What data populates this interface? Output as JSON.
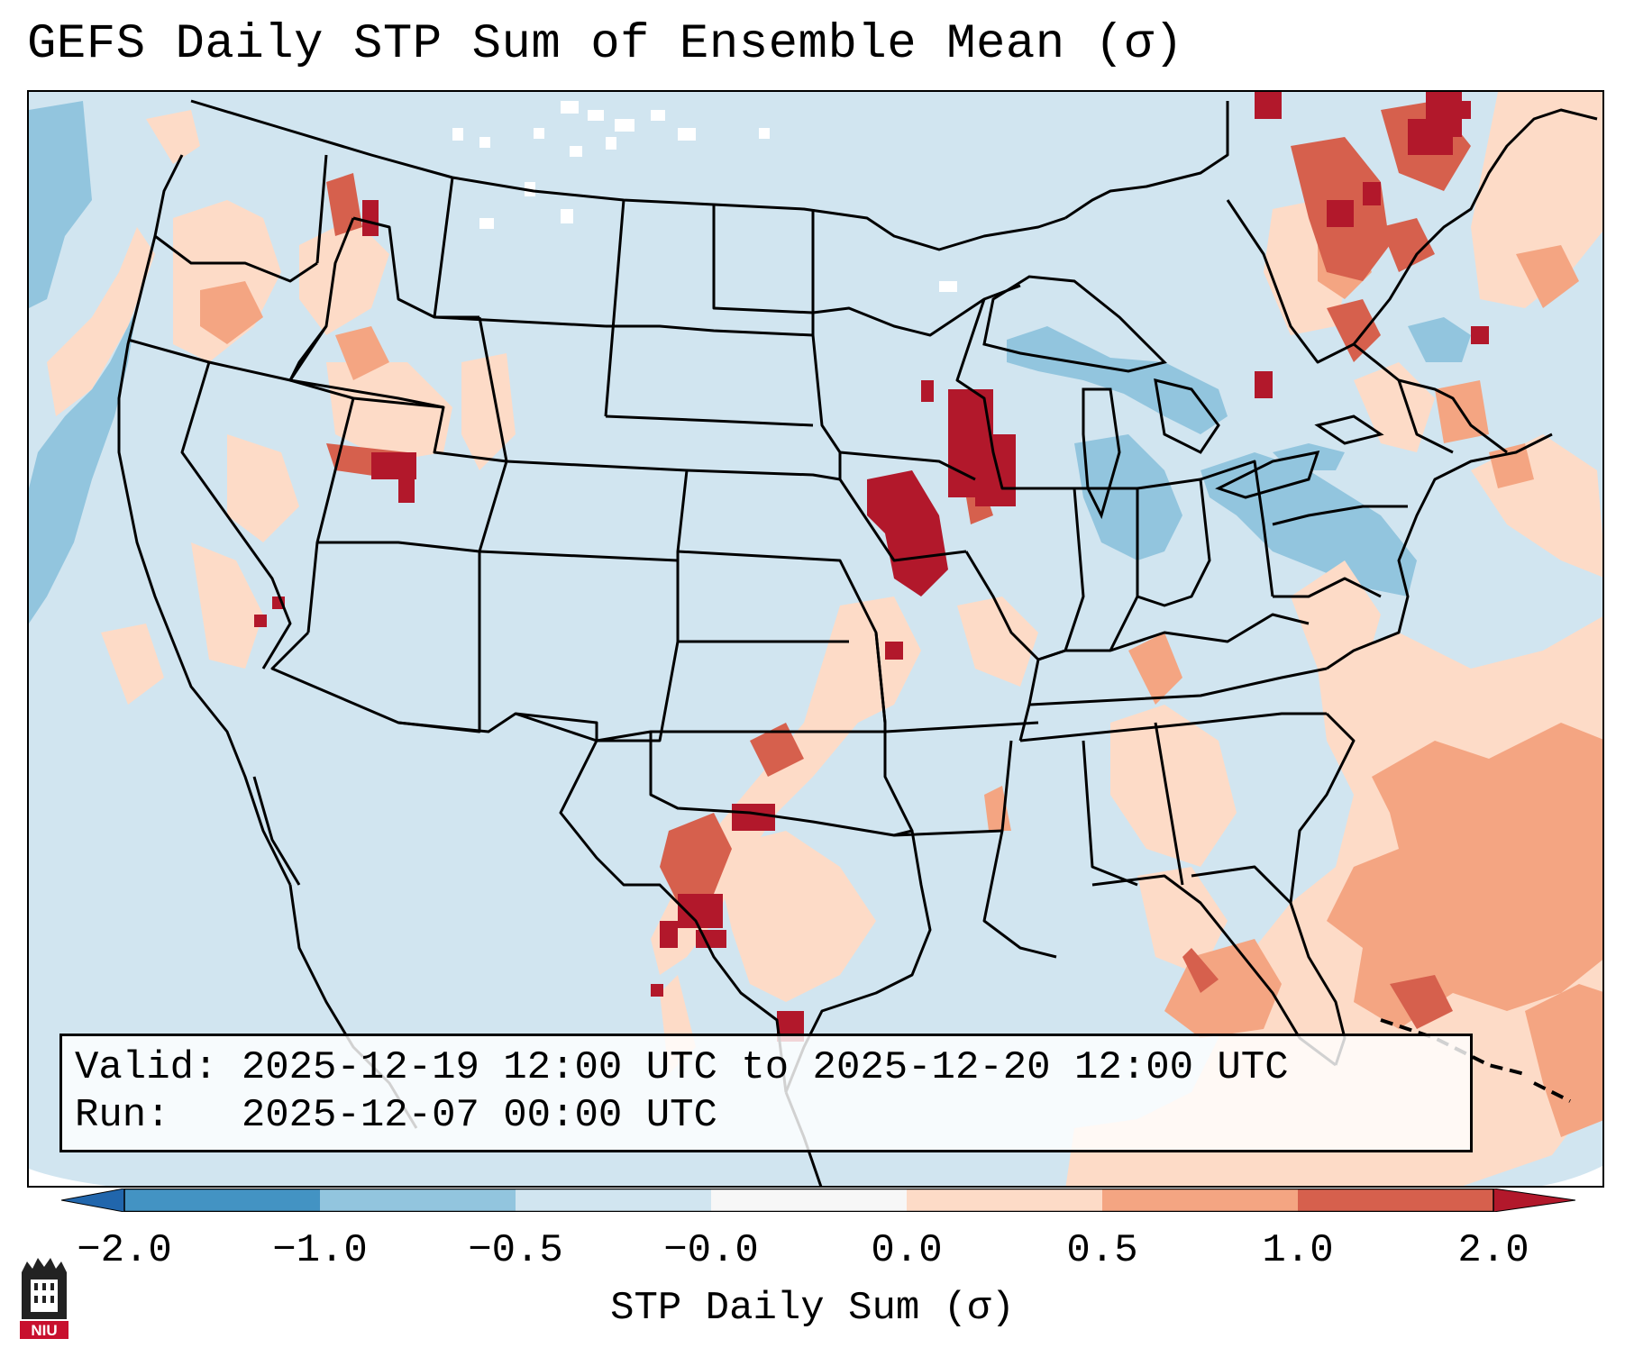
{
  "title": "GEFS Daily STP Sum of Ensemble Mean (σ)",
  "info": {
    "valid_line": "Valid: 2025-12-19 12:00 UTC to 2025-12-20 12:00 UTC",
    "run_line": "Run:   2025-12-07 00:00 UTC"
  },
  "colorbar": {
    "label": "STP Daily Sum (σ)",
    "tick_labels": [
      "−2.0",
      "−1.0",
      "−0.5",
      "−0.0",
      "0.0",
      "0.5",
      "1.0",
      "2.0"
    ],
    "bins": [
      {
        "range": "< -2.0",
        "color": "#2166ac"
      },
      {
        "range": "-2.0 to -1.0",
        "color": "#4393c3"
      },
      {
        "range": "-1.0 to -0.5",
        "color": "#92c5de"
      },
      {
        "range": "-0.5 to -0.0",
        "color": "#d1e5f0"
      },
      {
        "range": "-0.0 to 0.0",
        "color": "#f7f7f7"
      },
      {
        "range": "0.0 to 0.5",
        "color": "#fddbc7"
      },
      {
        "range": "0.5 to 1.0",
        "color": "#f4a582"
      },
      {
        "range": "1.0 to 2.0",
        "color": "#d6604d"
      },
      {
        "range": "> 2.0",
        "color": "#b2182b"
      }
    ]
  },
  "logo": {
    "text": "NIU",
    "name": "niu-logo"
  },
  "colors": {
    "background_field": "#d1e5f0",
    "state_lines": "#000000"
  }
}
